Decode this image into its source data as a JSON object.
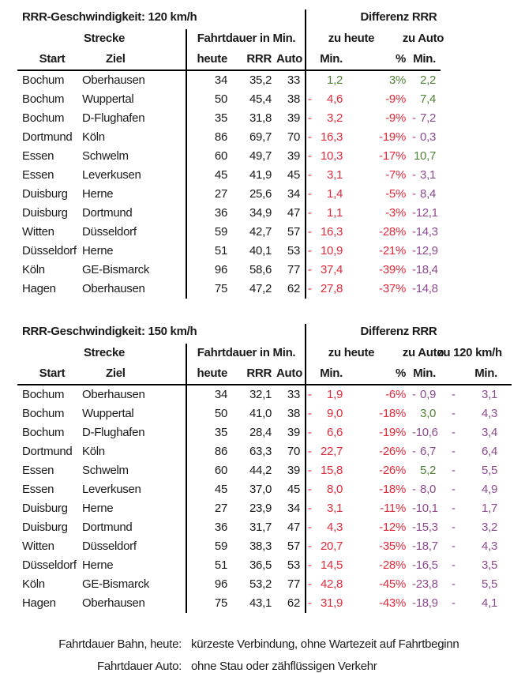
{
  "colors": {
    "green": "#538135",
    "red": "#e02b3c",
    "purple": "#8c4a8f",
    "text": "#1a1a1a",
    "line": "#000000"
  },
  "headers": {
    "strecke": "Strecke",
    "fahrtdauer": "Fahrtdauer in Min.",
    "zu_heute": "zu heute",
    "zu_auto": "zu Auto",
    "zu_120": "zu 120 km/h",
    "start": "Start",
    "ziel": "Ziel",
    "heute": "heute",
    "rrr": "RRR",
    "auto": "Auto",
    "min": "Min.",
    "pct": "%"
  },
  "tables": [
    {
      "title": "RRR-Geschwindigkeit: 120 km/h",
      "diff_title": "Differenz RRR",
      "extra_col": false,
      "rows": [
        {
          "start": "Bochum",
          "ziel": "Oberhausen",
          "heute": "34",
          "rrr": "35,2",
          "auto": "33",
          "diffs": [
            {
              "neg": false,
              "v": "1,2",
              "c": "green"
            },
            {
              "v": "3%",
              "c": "green"
            },
            {
              "neg": false,
              "v": "2,2",
              "c": "green"
            }
          ]
        },
        {
          "start": "Bochum",
          "ziel": "Wuppertal",
          "heute": "50",
          "rrr": "45,4",
          "auto": "38",
          "diffs": [
            {
              "neg": true,
              "v": "4,6",
              "c": "red"
            },
            {
              "v": "-9%",
              "c": "red"
            },
            {
              "neg": false,
              "v": "7,4",
              "c": "green"
            }
          ]
        },
        {
          "start": "Bochum",
          "ziel": "D-Flughafen",
          "heute": "35",
          "rrr": "31,8",
          "auto": "39",
          "diffs": [
            {
              "neg": true,
              "v": "3,2",
              "c": "red"
            },
            {
              "v": "-9%",
              "c": "red"
            },
            {
              "neg": true,
              "v": "7,2",
              "c": "purple"
            }
          ]
        },
        {
          "start": "Dortmund",
          "ziel": "Köln",
          "heute": "86",
          "rrr": "69,7",
          "auto": "70",
          "diffs": [
            {
              "neg": true,
              "v": "16,3",
              "c": "red"
            },
            {
              "v": "-19%",
              "c": "red"
            },
            {
              "neg": true,
              "v": "0,3",
              "c": "purple"
            }
          ]
        },
        {
          "start": "Essen",
          "ziel": "Schwelm",
          "heute": "60",
          "rrr": "49,7",
          "auto": "39",
          "diffs": [
            {
              "neg": true,
              "v": "10,3",
              "c": "red"
            },
            {
              "v": "-17%",
              "c": "red"
            },
            {
              "neg": false,
              "v": "10,7",
              "c": "green"
            }
          ]
        },
        {
          "start": "Essen",
          "ziel": "Leverkusen",
          "heute": "45",
          "rrr": "41,9",
          "auto": "45",
          "diffs": [
            {
              "neg": true,
              "v": "3,1",
              "c": "red"
            },
            {
              "v": "-7%",
              "c": "red"
            },
            {
              "neg": true,
              "v": "3,1",
              "c": "purple"
            }
          ]
        },
        {
          "start": "Duisburg",
          "ziel": "Herne",
          "heute": "27",
          "rrr": "25,6",
          "auto": "34",
          "diffs": [
            {
              "neg": true,
              "v": "1,4",
              "c": "red"
            },
            {
              "v": "-5%",
              "c": "red"
            },
            {
              "neg": true,
              "v": "8,4",
              "c": "purple"
            }
          ]
        },
        {
          "start": "Duisburg",
          "ziel": "Dortmund",
          "heute": "36",
          "rrr": "34,9",
          "auto": "47",
          "diffs": [
            {
              "neg": true,
              "v": "1,1",
              "c": "red"
            },
            {
              "v": "-3%",
              "c": "red"
            },
            {
              "neg": true,
              "v": "12,1",
              "c": "purple"
            }
          ]
        },
        {
          "start": "Witten",
          "ziel": "Düsseldorf",
          "heute": "59",
          "rrr": "42,7",
          "auto": "57",
          "diffs": [
            {
              "neg": true,
              "v": "16,3",
              "c": "red"
            },
            {
              "v": "-28%",
              "c": "red"
            },
            {
              "neg": true,
              "v": "14,3",
              "c": "purple"
            }
          ]
        },
        {
          "start": "Düsseldorf",
          "ziel": "Herne",
          "heute": "51",
          "rrr": "40,1",
          "auto": "53",
          "diffs": [
            {
              "neg": true,
              "v": "10,9",
              "c": "red"
            },
            {
              "v": "-21%",
              "c": "red"
            },
            {
              "neg": true,
              "v": "12,9",
              "c": "purple"
            }
          ]
        },
        {
          "start": "Köln",
          "ziel": "GE-Bismarck",
          "heute": "96",
          "rrr": "58,6",
          "auto": "77",
          "diffs": [
            {
              "neg": true,
              "v": "37,4",
              "c": "red"
            },
            {
              "v": "-39%",
              "c": "red"
            },
            {
              "neg": true,
              "v": "18,4",
              "c": "purple"
            }
          ]
        },
        {
          "start": "Hagen",
          "ziel": "Oberhausen",
          "heute": "75",
          "rrr": "47,2",
          "auto": "62",
          "diffs": [
            {
              "neg": true,
              "v": "27,8",
              "c": "red"
            },
            {
              "v": "-37%",
              "c": "red"
            },
            {
              "neg": true,
              "v": "14,8",
              "c": "purple"
            }
          ]
        }
      ]
    },
    {
      "title": "RRR-Geschwindigkeit: 150 km/h",
      "diff_title": "Differenz RRR",
      "extra_col": true,
      "rows": [
        {
          "start": "Bochum",
          "ziel": "Oberhausen",
          "heute": "34",
          "rrr": "32,1",
          "auto": "33",
          "diffs": [
            {
              "neg": true,
              "v": "1,9",
              "c": "red"
            },
            {
              "v": "-6%",
              "c": "red"
            },
            {
              "neg": true,
              "v": "0,9",
              "c": "purple"
            },
            {
              "neg": true,
              "v": "3,1",
              "c": "purple"
            }
          ]
        },
        {
          "start": "Bochum",
          "ziel": "Wuppertal",
          "heute": "50",
          "rrr": "41,0",
          "auto": "38",
          "diffs": [
            {
              "neg": true,
              "v": "9,0",
              "c": "red"
            },
            {
              "v": "-18%",
              "c": "red"
            },
            {
              "neg": false,
              "v": "3,0",
              "c": "green"
            },
            {
              "neg": true,
              "v": "4,3",
              "c": "purple"
            }
          ]
        },
        {
          "start": "Bochum",
          "ziel": "D-Flughafen",
          "heute": "35",
          "rrr": "28,4",
          "auto": "39",
          "diffs": [
            {
              "neg": true,
              "v": "6,6",
              "c": "red"
            },
            {
              "v": "-19%",
              "c": "red"
            },
            {
              "neg": true,
              "v": "10,6",
              "c": "purple"
            },
            {
              "neg": true,
              "v": "3,4",
              "c": "purple"
            }
          ]
        },
        {
          "start": "Dortmund",
          "ziel": "Köln",
          "heute": "86",
          "rrr": "63,3",
          "auto": "70",
          "diffs": [
            {
              "neg": true,
              "v": "22,7",
              "c": "red"
            },
            {
              "v": "-26%",
              "c": "red"
            },
            {
              "neg": true,
              "v": "6,7",
              "c": "purple"
            },
            {
              "neg": true,
              "v": "6,4",
              "c": "purple"
            }
          ]
        },
        {
          "start": "Essen",
          "ziel": "Schwelm",
          "heute": "60",
          "rrr": "44,2",
          "auto": "39",
          "diffs": [
            {
              "neg": true,
              "v": "15,8",
              "c": "red"
            },
            {
              "v": "-26%",
              "c": "red"
            },
            {
              "neg": false,
              "v": "5,2",
              "c": "green"
            },
            {
              "neg": true,
              "v": "5,5",
              "c": "purple"
            }
          ]
        },
        {
          "start": "Essen",
          "ziel": "Leverkusen",
          "heute": "45",
          "rrr": "37,0",
          "auto": "45",
          "diffs": [
            {
              "neg": true,
              "v": "8,0",
              "c": "red"
            },
            {
              "v": "-18%",
              "c": "red"
            },
            {
              "neg": true,
              "v": "8,0",
              "c": "purple"
            },
            {
              "neg": true,
              "v": "4,9",
              "c": "purple"
            }
          ]
        },
        {
          "start": "Duisburg",
          "ziel": "Herne",
          "heute": "27",
          "rrr": "23,9",
          "auto": "34",
          "diffs": [
            {
              "neg": true,
              "v": "3,1",
              "c": "red"
            },
            {
              "v": "-11%",
              "c": "red"
            },
            {
              "neg": true,
              "v": "10,1",
              "c": "purple"
            },
            {
              "neg": true,
              "v": "1,7",
              "c": "purple"
            }
          ]
        },
        {
          "start": "Duisburg",
          "ziel": "Dortmund",
          "heute": "36",
          "rrr": "31,7",
          "auto": "47",
          "diffs": [
            {
              "neg": true,
              "v": "4,3",
              "c": "red"
            },
            {
              "v": "-12%",
              "c": "red"
            },
            {
              "neg": true,
              "v": "15,3",
              "c": "purple"
            },
            {
              "neg": true,
              "v": "3,2",
              "c": "purple"
            }
          ]
        },
        {
          "start": "Witten",
          "ziel": "Düsseldorf",
          "heute": "59",
          "rrr": "38,3",
          "auto": "57",
          "diffs": [
            {
              "neg": true,
              "v": "20,7",
              "c": "red"
            },
            {
              "v": "-35%",
              "c": "red"
            },
            {
              "neg": true,
              "v": "18,7",
              "c": "purple"
            },
            {
              "neg": true,
              "v": "4,3",
              "c": "purple"
            }
          ]
        },
        {
          "start": "Düsseldorf",
          "ziel": "Herne",
          "heute": "51",
          "rrr": "36,5",
          "auto": "53",
          "diffs": [
            {
              "neg": true,
              "v": "14,5",
              "c": "red"
            },
            {
              "v": "-28%",
              "c": "red"
            },
            {
              "neg": true,
              "v": "16,5",
              "c": "purple"
            },
            {
              "neg": true,
              "v": "3,5",
              "c": "purple"
            }
          ]
        },
        {
          "start": "Köln",
          "ziel": "GE-Bismarck",
          "heute": "96",
          "rrr": "53,2",
          "auto": "77",
          "diffs": [
            {
              "neg": true,
              "v": "42,8",
              "c": "red"
            },
            {
              "v": "-45%",
              "c": "red"
            },
            {
              "neg": true,
              "v": "23,8",
              "c": "purple"
            },
            {
              "neg": true,
              "v": "5,5",
              "c": "purple"
            }
          ]
        },
        {
          "start": "Hagen",
          "ziel": "Oberhausen",
          "heute": "75",
          "rrr": "43,1",
          "auto": "62",
          "diffs": [
            {
              "neg": true,
              "v": "31,9",
              "c": "red"
            },
            {
              "v": "-43%",
              "c": "red"
            },
            {
              "neg": true,
              "v": "18,9",
              "c": "purple"
            },
            {
              "neg": true,
              "v": "4,1",
              "c": "purple"
            }
          ]
        }
      ]
    }
  ],
  "footnotes": [
    {
      "label": "Fahrtdauer Bahn, heute:",
      "text": "kürzeste Verbindung, ohne Wartezeit auf Fahrtbeginn"
    },
    {
      "label": "Fahrtdauer Auto:",
      "text": "ohne Stau oder zähflüssigen Verkehr"
    }
  ]
}
